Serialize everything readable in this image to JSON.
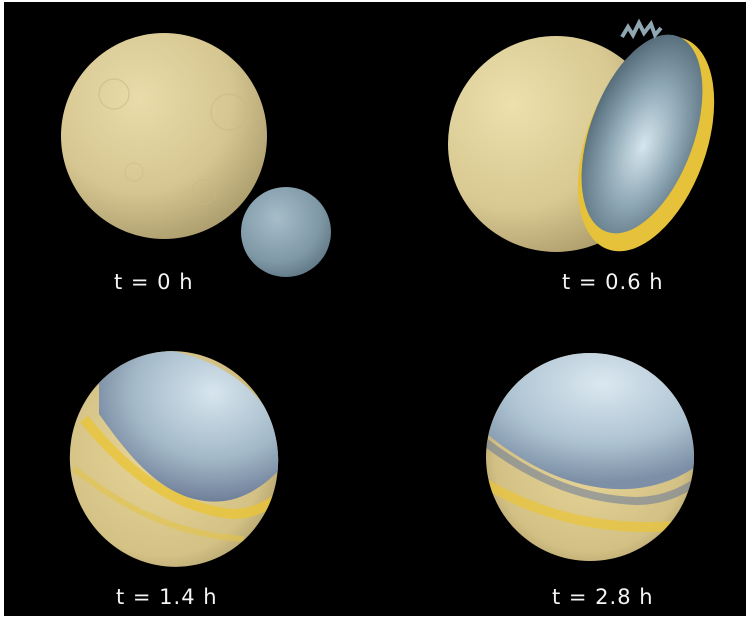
{
  "panels": [
    {
      "label": "t = 0 h"
    },
    {
      "label": "t = 0.6 h"
    },
    {
      "label": "t = 1.4 h"
    },
    {
      "label": "t = 2.8 h"
    }
  ],
  "colors": {
    "background": "#000000",
    "target_body": "#d8c994",
    "impactor_body": "#7d97a6",
    "ejecta_yellow": "#e9c437",
    "mantle_blue": "#a9c3d6"
  }
}
